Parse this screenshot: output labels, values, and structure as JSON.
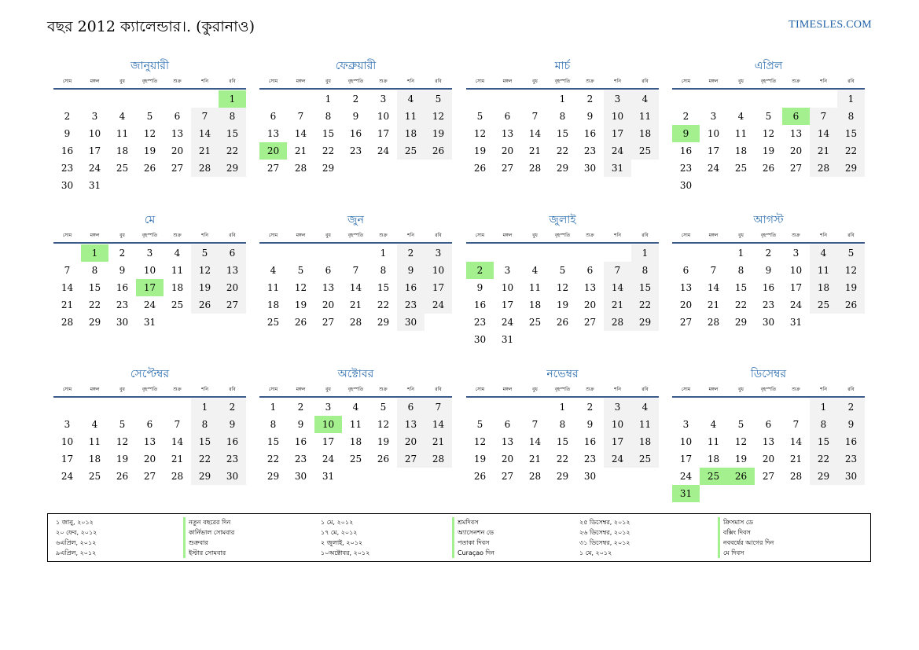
{
  "header": {
    "title": "বছর 2012 ক্যালেন্ডার।. (কুরানাও)",
    "brand": "TIMESLES.COM"
  },
  "dow_labels": [
    "সোম",
    "মঙ্গল",
    "বুধ",
    "বৃহস্পতি",
    "শুক্র",
    "শনি",
    "রবি"
  ],
  "colors": {
    "month_title": "#2f6fb0",
    "holiday": "#a4f08f",
    "weekend": "#f2f2f2",
    "rule": "#3a5a8a"
  },
  "months": [
    {
      "name": "জানুয়ারী",
      "offset": 6,
      "days": 31,
      "holidays": [
        1
      ]
    },
    {
      "name": "ফেব্রুয়ারী",
      "offset": 2,
      "days": 29,
      "holidays": [
        20
      ]
    },
    {
      "name": "মার্চ",
      "offset": 3,
      "days": 31,
      "holidays": []
    },
    {
      "name": "এপ্রিল",
      "offset": 6,
      "days": 30,
      "holidays": [
        6,
        9
      ]
    },
    {
      "name": "মে",
      "offset": 1,
      "days": 31,
      "holidays": [
        1,
        17
      ]
    },
    {
      "name": "জুন",
      "offset": 4,
      "days": 30,
      "holidays": []
    },
    {
      "name": "জুলাই",
      "offset": 6,
      "days": 31,
      "holidays": [
        2
      ]
    },
    {
      "name": "আগস্ট",
      "offset": 2,
      "days": 31,
      "holidays": []
    },
    {
      "name": "সেপ্টেম্বর",
      "offset": 5,
      "days": 30,
      "holidays": []
    },
    {
      "name": "অক্টোবর",
      "offset": 0,
      "days": 31,
      "holidays": [
        10
      ]
    },
    {
      "name": "নভেম্বর",
      "offset": 3,
      "days": 30,
      "holidays": []
    },
    {
      "name": "ডিসেম্বর",
      "offset": 5,
      "days": 31,
      "holidays": [
        25,
        26,
        31
      ]
    }
  ],
  "legend": {
    "dates_1": [
      "১ জানু, ২০১২",
      "২০ ফেব, ২০১২",
      "৬এপ্রিল, ২০১২",
      "৯এপ্রিল, ২০১২"
    ],
    "names_1": [
      "নতুন বছরের দিন",
      "কার্নিভাল সোমবার",
      "শুক্রবার",
      "ইস্টার সোমবার"
    ],
    "dates_2": [
      "১ মে, ২০১২",
      "১৭ মে, ২০১২",
      "২ জুলাই, ২০১২",
      "১০অক্টোবর, ২০১২"
    ],
    "names_2": [
      "শ্রমদিবস",
      "অ্যাসেনশন ডে",
      "পতাকা দিবস",
      "Curaçao দিন"
    ],
    "dates_3": [
      "২৫ ডিসেম্বর, ২০১২",
      "২৬ ডিসেম্বর, ২০১২",
      "৩১ ডিসেম্বর, ২০১২",
      "১ মে, ২০১২"
    ],
    "names_3": [
      "ক্রিসমাস ডে",
      "বক্সিং দিবস",
      "নববর্ষের আগের দিন",
      "মে দিবস"
    ]
  }
}
